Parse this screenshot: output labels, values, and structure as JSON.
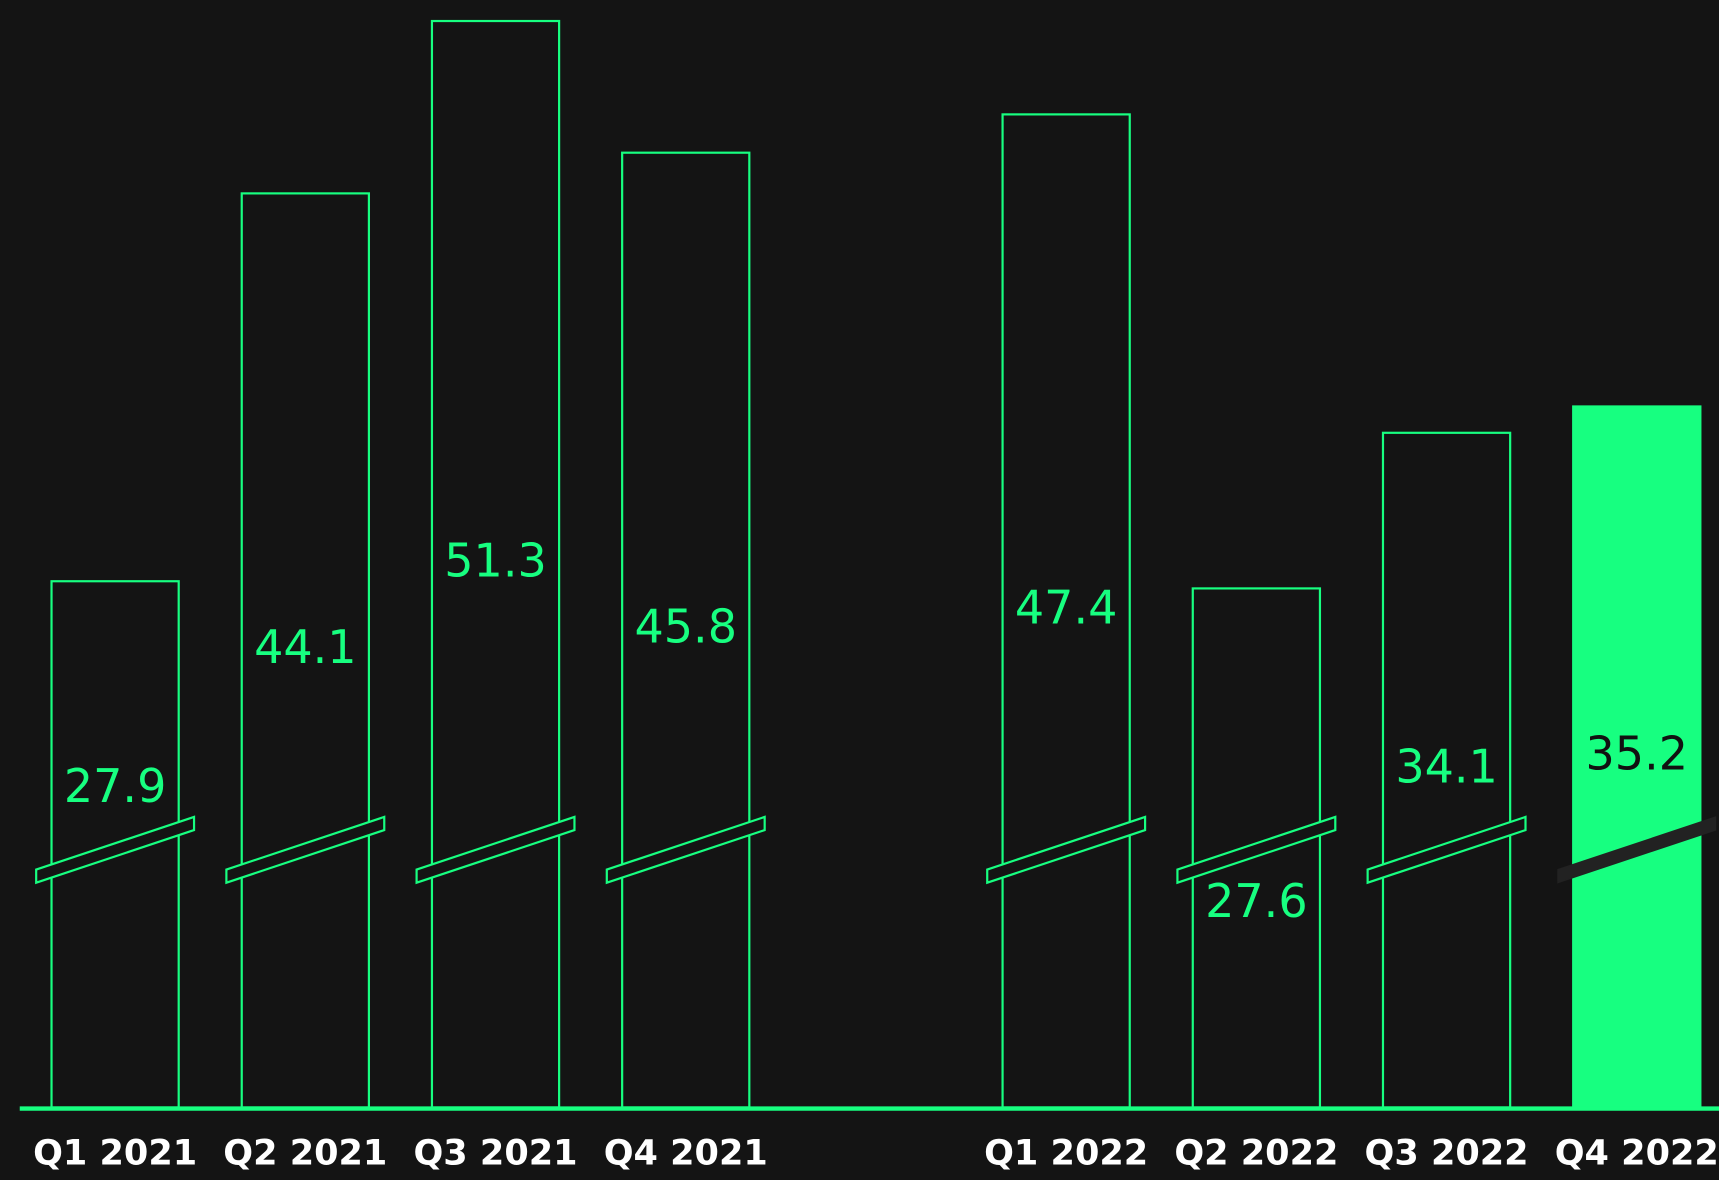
{
  "chart_data": {
    "type": "bar",
    "categories": [
      "Q1 2021",
      "Q2 2021",
      "Q3 2021",
      "Q4 2021",
      null,
      "Q1 2022",
      "Q2 2022",
      "Q3 2022",
      "Q4 2022"
    ],
    "values": [
      27.9,
      44.1,
      51.3,
      45.8,
      null,
      47.4,
      27.6,
      34.1,
      35.2
    ],
    "color": "#17ff80",
    "highlight_index": 8,
    "axis_break": true,
    "ylim": [
      5.92,
      52.17
    ]
  }
}
